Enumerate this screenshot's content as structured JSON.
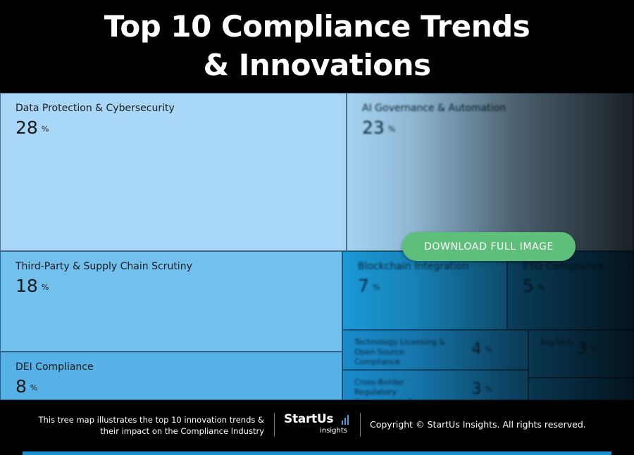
{
  "title_line1": "Top 10 Compliance Trends",
  "title_line2": "& Innovations",
  "download_button": "DOWNLOAD FULL IMAGE",
  "footer": {
    "description_line1": "This tree map illustrates the top 10 innovation trends &",
    "description_line2": "their impact on the Compliance Industry",
    "brand": "StartUs",
    "brand_sub": "insights",
    "copyright": "Copyright © StartUs Insights. All rights reserved."
  },
  "colors": {
    "tile_light": "#a8d7f7",
    "tile_mid": "#72c0ee",
    "tile_dark": "#56b2e6",
    "tile_deep": "#1b9ad8",
    "button": "#5dbf7a",
    "bar": "#1a8fd0"
  },
  "chart_data": {
    "type": "treemap",
    "unit": "%",
    "items": [
      {
        "label": "Data Protection & Cybersecurity",
        "value": 28
      },
      {
        "label": "AI Governance & Automation",
        "value": 23
      },
      {
        "label": "Third-Party & Supply Chain Scrutiny",
        "value": 18
      },
      {
        "label": "DEI Compliance",
        "value": 8
      },
      {
        "label": "Blockchain Integration",
        "value": 7
      },
      {
        "label": "ESG Compliance",
        "value": 5
      },
      {
        "label": "Technology Licensing & Open Source Compliance",
        "value": 4
      },
      {
        "label": "RegTech",
        "value": 3
      },
      {
        "label": "Cross-Border Regulatory Convergence & Harmonization",
        "value": 3
      },
      {
        "label": "",
        "value": 1
      }
    ]
  }
}
